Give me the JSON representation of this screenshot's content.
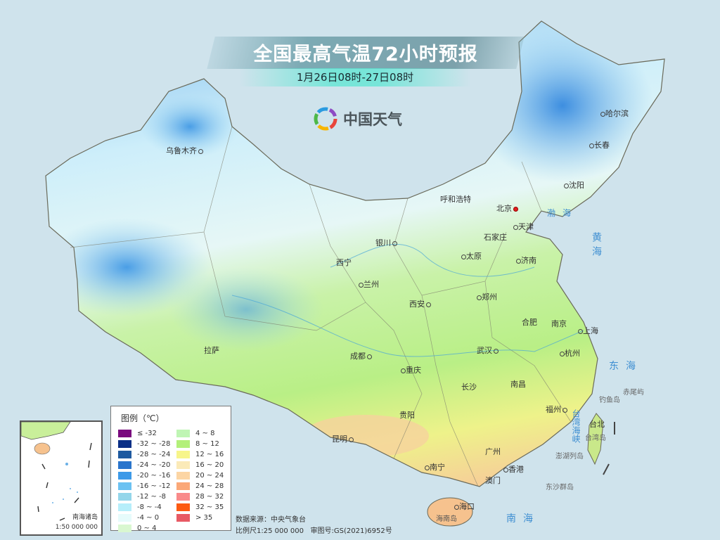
{
  "header": {
    "title": "全国最高气温72小时预报",
    "subtitle": "1月26日08时-27日08时",
    "logo_text": "中国天气"
  },
  "cities": [
    {
      "name": "乌鲁木齐"
    },
    {
      "name": "哈尔滨"
    },
    {
      "name": "长春"
    },
    {
      "name": "沈阳"
    },
    {
      "name": "呼和浩特"
    },
    {
      "name": "北京",
      "capital": true
    },
    {
      "name": "天津"
    },
    {
      "name": "石家庄"
    },
    {
      "name": "太原"
    },
    {
      "name": "济南"
    },
    {
      "name": "银川"
    },
    {
      "name": "西宁"
    },
    {
      "name": "兰州"
    },
    {
      "name": "西安"
    },
    {
      "name": "郑州"
    },
    {
      "name": "合肥"
    },
    {
      "name": "南京"
    },
    {
      "name": "上海"
    },
    {
      "name": "杭州"
    },
    {
      "name": "拉萨"
    },
    {
      "name": "成都"
    },
    {
      "name": "重庆"
    },
    {
      "name": "武汉"
    },
    {
      "name": "长沙"
    },
    {
      "name": "南昌"
    },
    {
      "name": "福州"
    },
    {
      "name": "台北"
    },
    {
      "name": "贵阳"
    },
    {
      "name": "昆明"
    },
    {
      "name": "广州"
    },
    {
      "name": "南宁"
    },
    {
      "name": "香港"
    },
    {
      "name": "澳门"
    },
    {
      "name": "海口"
    }
  ],
  "seas": {
    "bohai": "渤海",
    "huanghai": "黄海",
    "donghai": "东海",
    "nanhai": "南海",
    "taiwan_strait": "台湾海峡"
  },
  "islands": {
    "diaoyu": "钓鱼岛",
    "chiwei": "赤尾屿",
    "taiwan": "台湾岛",
    "penghu": "澎湖列岛",
    "dongsha": "东沙群岛",
    "hainan": "海南岛"
  },
  "legend": {
    "title": "图例（℃）",
    "items": [
      {
        "label": "≤ -32",
        "color": "#7a0a7e"
      },
      {
        "label": "-32 ~ -28",
        "color": "#0b2f86"
      },
      {
        "label": "-28 ~ -24",
        "color": "#1f5aa0"
      },
      {
        "label": "-24 ~ -20",
        "color": "#2a75cc"
      },
      {
        "label": "-20 ~ -16",
        "color": "#3d9ae8"
      },
      {
        "label": "-16 ~ -12",
        "color": "#6cc2f2"
      },
      {
        "label": "-12 ~ -8",
        "color": "#94d6ea"
      },
      {
        "label": "-8 ~ -4",
        "color": "#b6eefa"
      },
      {
        "label": "-4 ~ 0",
        "color": "#e6fbfb"
      },
      {
        "label": "0 ~ 4",
        "color": "#d9f7d0"
      },
      {
        "label": "4 ~ 8",
        "color": "#bff5b4"
      },
      {
        "label": "8 ~ 12",
        "color": "#b3f07a"
      },
      {
        "label": "12 ~ 16",
        "color": "#f7f58a"
      },
      {
        "label": "16 ~ 20",
        "color": "#fbeab8"
      },
      {
        "label": "20 ~ 24",
        "color": "#fcd5a4"
      },
      {
        "label": "24 ~ 28",
        "color": "#fba878"
      },
      {
        "label": "28 ~ 32",
        "color": "#f98a8a"
      },
      {
        "label": "32 ~ 35",
        "color": "#fd5a12"
      },
      {
        "label": "> 35",
        "color": "#e85a64"
      }
    ]
  },
  "footer": {
    "source": "数据来源：中央气象台",
    "scale": "比例尺1:25 000 000",
    "approval": "审图号:GS(2021)6952号"
  },
  "inset": {
    "label": "南海诸岛",
    "scale": "1:50 000 000"
  }
}
